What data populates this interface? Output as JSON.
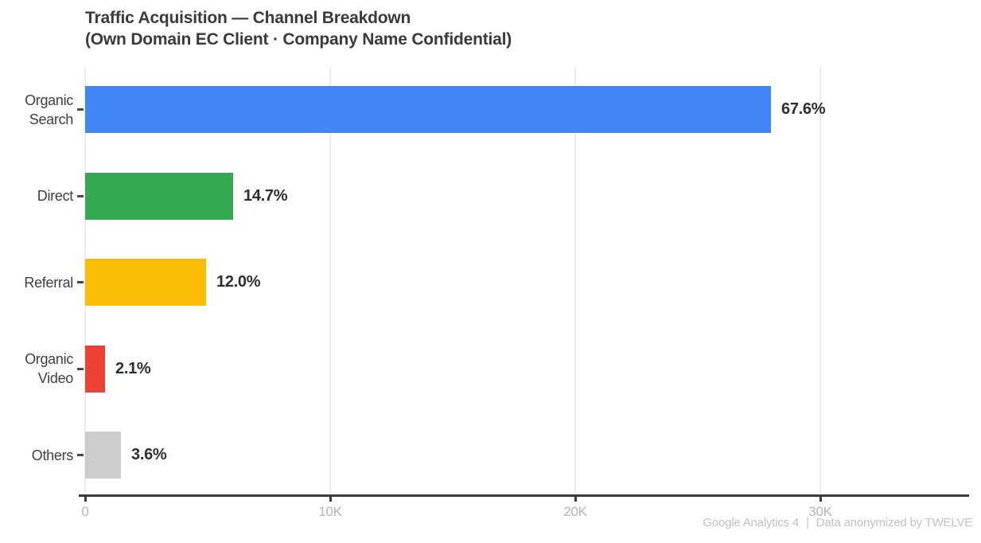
{
  "title": {
    "line1": "Traffic Acquisition — Channel Breakdown",
    "line2": "(Own Domain EC Client · Company Name Confidential)"
  },
  "chart_data": {
    "type": "bar",
    "orientation": "horizontal",
    "title": "Traffic Acquisition — Channel Breakdown (Own Domain EC Client · Company Name Confidential)",
    "categories": [
      "Organic Search",
      "Direct",
      "Referral",
      "Organic Video",
      "Others"
    ],
    "values": [
      28000,
      6050,
      4950,
      810,
      1470
    ],
    "value_labels": [
      "67.6%",
      "14.7%",
      "12.0%",
      "2.1%",
      "3.6%"
    ],
    "percentages": [
      67.6,
      14.7,
      12.0,
      2.1,
      3.6
    ],
    "bar_colors": [
      "#4285F4",
      "#34A853",
      "#FBBC05",
      "#EA4335",
      "#CCCCCC"
    ],
    "x_tick_labels": [
      "0",
      "10K",
      "20K",
      "30K"
    ],
    "x_tick_values": [
      0,
      10000,
      20000,
      30000
    ],
    "xlim": [
      0,
      36000
    ],
    "xlabel": "",
    "ylabel": "",
    "grid": "vertical light gridlines at each x tick",
    "legend": "none",
    "units": "sessions (values estimated from axis scale)"
  },
  "footer": {
    "source": "Google Analytics 4",
    "separator": "|",
    "note": "Data anonymized by TWELVE"
  },
  "colors": {
    "background": "#FFFFFF",
    "title_text": "#3A3A3A",
    "category_text": "#3F3F3F",
    "value_label_text": "#2E2E2E",
    "axis_line": "#3C3C3C",
    "tick_label_text": "#B4B4B4",
    "gridline": "#EDEDED",
    "footer_text": "#C2C2C2"
  }
}
